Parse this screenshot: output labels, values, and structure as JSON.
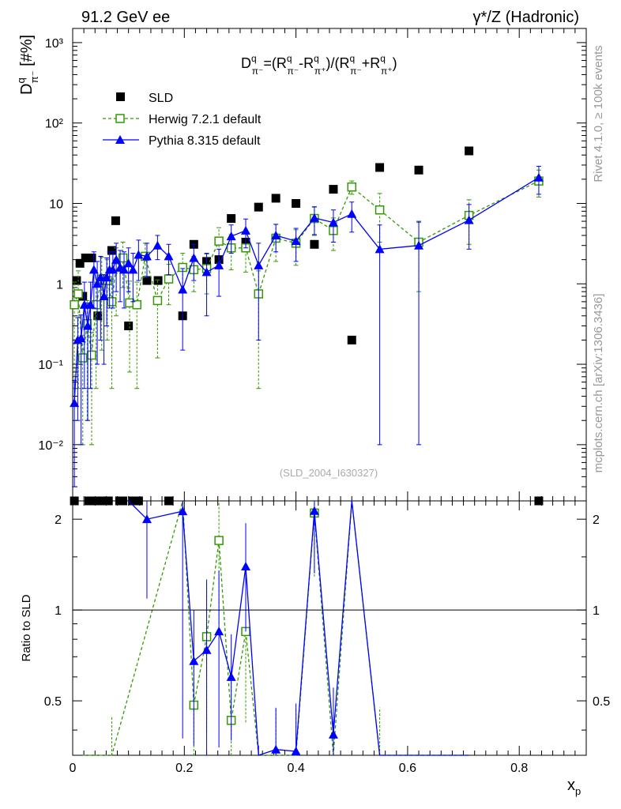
{
  "header": {
    "energy": "91.2 GeV ee",
    "process": "γ*/Z (Hadronic)",
    "side_rivet": "Rivet 4.1.0, ≥ 100k events",
    "side_site": "mcplots.cern.ch [arXiv:1306.3436]"
  },
  "chart_data": {
    "type": "scatter",
    "title": "D^q_π⁻ = (R^q_π⁻ - R^q_π⁺)/(R^q_π⁻ + R^q_π⁺)",
    "title_parts": {
      "D": "D",
      "q": "q",
      "pim": "π⁻",
      "pip": "π⁺",
      "eq": "=(R",
      "minus": "-R",
      "mid": ")/(R",
      "plus": "+R",
      "close": ")"
    },
    "ylabel": "D",
    "ylabel_parts": {
      "sup": "q",
      "sub": "π⁻",
      "unit": " [#%]"
    },
    "xlabel": "x",
    "xlabel_sub": "p",
    "ratio_ylabel": "Ratio to SLD",
    "analysis_id": "(SLD_2004_I630327)",
    "x_range": [
      0,
      0.92
    ],
    "y_range_log": [
      0.002,
      1500
    ],
    "ratio_range": [
      0.33,
      2.3
    ],
    "x_ticks": [
      "0",
      "0.2",
      "0.4",
      "0.6",
      "0.8"
    ],
    "x_tick_values": [
      0,
      0.2,
      0.4,
      0.6,
      0.8
    ],
    "y_ticks": [
      "10⁻²",
      "10⁻¹",
      "1",
      "10",
      "10²",
      "10³"
    ],
    "y_tick_values": [
      0.01,
      0.1,
      1,
      10,
      100,
      1000
    ],
    "ratio_ticks": [
      "0.5",
      "1",
      "2"
    ],
    "ratio_tick_values": [
      0.5,
      1,
      2
    ],
    "legend": [
      "SLD",
      "Herwig 7.2.1 default",
      "Pythia 8.315 default"
    ],
    "series": [
      {
        "name": "SLD",
        "color": "#000000",
        "marker": "square-filled",
        "x": [
          0.003,
          0.007,
          0.013,
          0.018,
          0.023,
          0.029,
          0.034,
          0.039,
          0.045,
          0.052,
          0.058,
          0.064,
          0.07,
          0.077,
          0.084,
          0.09,
          0.1,
          0.108,
          0.118,
          0.133,
          0.153,
          0.172,
          0.197,
          0.217,
          0.24,
          0.262,
          0.284,
          0.31,
          0.333,
          0.364,
          0.4,
          0.433,
          0.467,
          0.5,
          0.55,
          0.62,
          0.71,
          0.835
        ],
        "y": [
          0.002,
          1.1,
          1.8,
          0.7,
          2.1,
          0.002,
          2.1,
          0.002,
          0.4,
          0.002,
          1.1,
          0.002,
          2.6,
          6.1,
          0.002,
          0.002,
          0.3,
          0.002,
          0.002,
          1.1,
          1.1,
          0.002,
          0.4,
          3.1,
          1.9,
          2.0,
          6.5,
          3.3,
          9.0,
          11.6,
          10.0,
          3.1,
          15.0,
          0.2,
          28.0,
          26.0,
          45.0,
          0.002
        ]
      },
      {
        "name": "Herwig 7.2.1 default",
        "color": "#339900",
        "marker": "square-open",
        "x": [
          0.003,
          0.01,
          0.018,
          0.026,
          0.034,
          0.042,
          0.052,
          0.062,
          0.07,
          0.078,
          0.09,
          0.102,
          0.115,
          0.13,
          0.152,
          0.172,
          0.197,
          0.217,
          0.24,
          0.262,
          0.284,
          0.31,
          0.333,
          0.364,
          0.4,
          0.433,
          0.467,
          0.5,
          0.55,
          0.62,
          0.71,
          0.835
        ],
        "y": [
          0.55,
          0.75,
          0.12,
          0.32,
          0.13,
          0.55,
          1.15,
          1.1,
          0.6,
          1.6,
          2.1,
          0.58,
          0.55,
          2.2,
          0.62,
          1.15,
          1.6,
          1.5,
          1.55,
          3.4,
          2.8,
          2.8,
          0.75,
          3.7,
          3.2,
          6.5,
          4.6,
          16.0,
          8.3,
          3.3,
          7.1,
          19.0
        ],
        "yerr": [
          0.5,
          0.7,
          0.11,
          0.3,
          0.12,
          0.5,
          1.0,
          0.9,
          0.55,
          1.2,
          1.2,
          0.5,
          0.5,
          1.0,
          0.5,
          0.6,
          0.8,
          0.7,
          0.8,
          1.6,
          1.3,
          1.4,
          0.7,
          1.8,
          1.5,
          2.5,
          2.0,
          3.0,
          5.0,
          2.5,
          4.0,
          7.0
        ]
      },
      {
        "name": "Pythia 8.315 default",
        "color": "#0000ff",
        "marker": "triangle-filled",
        "x": [
          0.003,
          0.009,
          0.015,
          0.021,
          0.027,
          0.032,
          0.038,
          0.044,
          0.05,
          0.056,
          0.061,
          0.066,
          0.072,
          0.078,
          0.085,
          0.092,
          0.1,
          0.108,
          0.118,
          0.133,
          0.152,
          0.172,
          0.197,
          0.217,
          0.24,
          0.262,
          0.284,
          0.31,
          0.333,
          0.364,
          0.4,
          0.433,
          0.467,
          0.5,
          0.55,
          0.62,
          0.71,
          0.835
        ],
        "y": [
          0.033,
          0.2,
          0.21,
          0.55,
          0.3,
          0.55,
          1.5,
          1.0,
          1.2,
          0.7,
          1.2,
          1.5,
          1.5,
          2.0,
          1.6,
          1.5,
          1.8,
          1.5,
          2.3,
          2.2,
          3.0,
          2.2,
          0.85,
          2.1,
          1.4,
          1.7,
          3.9,
          4.6,
          1.7,
          4.0,
          3.4,
          6.6,
          5.8,
          7.4,
          2.7,
          3.0,
          6.2,
          21.0
        ],
        "yerr": [
          0.03,
          0.18,
          0.2,
          0.5,
          0.28,
          0.5,
          1.0,
          0.9,
          1.0,
          0.6,
          0.9,
          1.0,
          1.0,
          1.2,
          1.0,
          1.0,
          1.0,
          0.9,
          1.2,
          1.0,
          1.0,
          0.9,
          0.7,
          1.0,
          1.0,
          1.0,
          1.5,
          1.8,
          1.5,
          1.5,
          1.5,
          2.5,
          2.5,
          3.0,
          2.69,
          2.99,
          3.5,
          8.0
        ]
      }
    ]
  }
}
